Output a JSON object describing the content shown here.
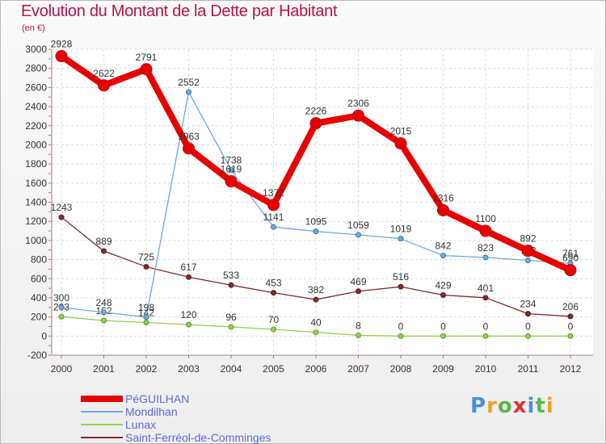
{
  "title": "Evolution du Montant de la Dette par Habitant",
  "subtitle": "(en €)",
  "logo": {
    "letters": [
      {
        "ch": "P",
        "color": "#4a8fd6"
      },
      {
        "ch": "r",
        "color": "#f0a020"
      },
      {
        "ch": "o",
        "color": "#58b848"
      },
      {
        "ch": "x",
        "color": "#e03030"
      },
      {
        "ch": "i",
        "color": "#4a8fd6"
      },
      {
        "ch": "t",
        "color": "#58b848"
      },
      {
        "ch": "i",
        "color": "#f0a020"
      }
    ]
  },
  "chart_data": {
    "type": "line",
    "title": "Evolution du Montant de la Dette par Habitant",
    "subtitle": "(en €)",
    "x": [
      "2000",
      "2001",
      "2002",
      "2003",
      "2004",
      "2005",
      "2006",
      "2007",
      "2008",
      "2009",
      "2010",
      "2011",
      "2012"
    ],
    "ylim": [
      -200,
      3000
    ],
    "yticks": [
      -200,
      0,
      200,
      400,
      600,
      800,
      1000,
      1200,
      1400,
      1600,
      1800,
      2000,
      2200,
      2400,
      2600,
      2800,
      3000
    ],
    "grid": true,
    "legend_position": "bottom-left",
    "series": [
      {
        "name": "PéGUILHAN",
        "color": "#e60000",
        "values": [
          2928,
          2622,
          2791,
          1963,
          1619,
          1372,
          2226,
          2306,
          2015,
          1316,
          1100,
          892,
          690
        ]
      },
      {
        "name": "Mondilhan",
        "color": "#6fa8dc",
        "values": [
          300,
          248,
          198,
          2552,
          1738,
          1141,
          1095,
          1059,
          1019,
          842,
          823,
          792,
          761
        ]
      },
      {
        "name": "Lunax",
        "color": "#92d050",
        "values": [
          203,
          162,
          142,
          120,
          96,
          70,
          40,
          8,
          0,
          0,
          0,
          0,
          0
        ]
      },
      {
        "name": "Saint-Ferréol-de-Comminges",
        "color": "#7f2c2c",
        "values": [
          1243,
          889,
          725,
          617,
          533,
          453,
          382,
          469,
          516,
          429,
          401,
          234,
          206
        ]
      }
    ]
  }
}
